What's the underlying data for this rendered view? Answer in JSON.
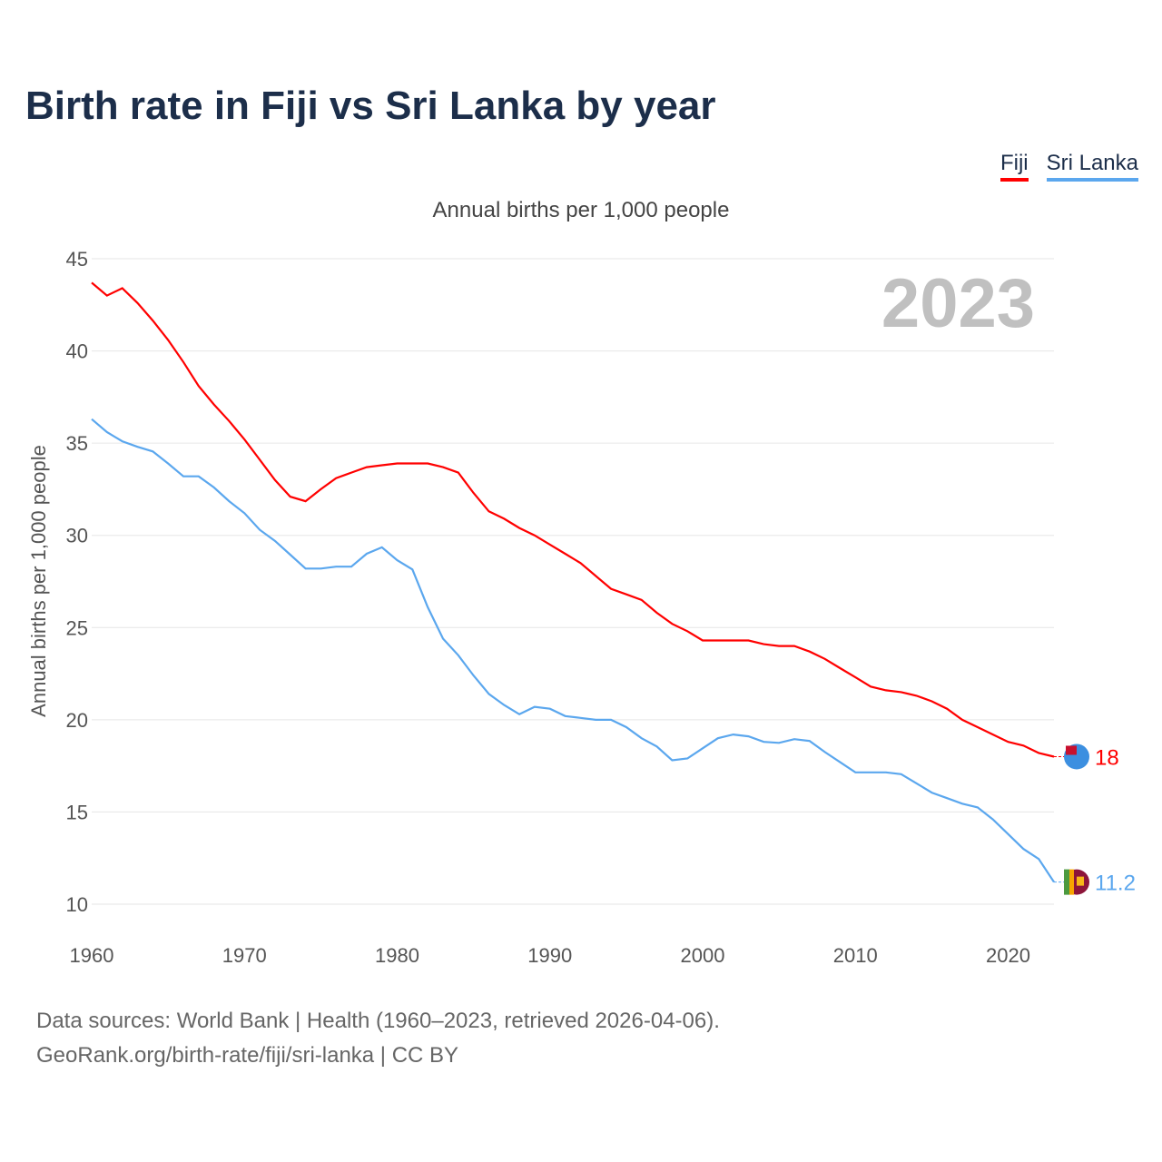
{
  "title": "Birth rate in Fiji vs Sri Lanka by year",
  "footer": {
    "line1": "Data sources: World Bank | Health (1960–2023, retrieved 2026-04-06).",
    "line2": "GeoRank.org/birth-rate/fiji/sri-lanka | CC BY"
  },
  "chart_data": {
    "type": "line",
    "title": "Birth rate in Fiji vs Sri Lanka by year",
    "subtitle": "Annual births per 1,000 people",
    "ylabel": "Annual births per 1,000 people",
    "xlabel": "",
    "year_label": "2023",
    "ylim": [
      10,
      45
    ],
    "xlim": [
      1960,
      2023
    ],
    "yticks": [
      10,
      15,
      20,
      25,
      30,
      35,
      40,
      45
    ],
    "xticks": [
      1960,
      1970,
      1980,
      1990,
      2000,
      2010,
      2020
    ],
    "legend": "top-right",
    "x": [
      1960,
      1961,
      1962,
      1963,
      1964,
      1965,
      1966,
      1967,
      1968,
      1969,
      1970,
      1971,
      1972,
      1973,
      1974,
      1975,
      1976,
      1977,
      1978,
      1979,
      1980,
      1981,
      1982,
      1983,
      1984,
      1985,
      1986,
      1987,
      1988,
      1989,
      1990,
      1991,
      1992,
      1993,
      1994,
      1995,
      1996,
      1997,
      1998,
      1999,
      2000,
      2001,
      2002,
      2003,
      2004,
      2005,
      2006,
      2007,
      2008,
      2009,
      2010,
      2011,
      2012,
      2013,
      2014,
      2015,
      2016,
      2017,
      2018,
      2019,
      2020,
      2021,
      2022,
      2023
    ],
    "series": [
      {
        "name": "Fiji",
        "color": "#ff0000",
        "end_label": "18",
        "values": [
          43.7,
          43.0,
          43.4,
          42.6,
          41.65,
          40.6,
          39.4,
          38.1,
          37.1,
          36.2,
          35.2,
          34.1,
          33.0,
          32.1,
          31.85,
          32.5,
          33.1,
          33.4,
          33.7,
          33.8,
          33.9,
          33.9,
          33.9,
          33.7,
          33.4,
          32.3,
          31.3,
          30.9,
          30.4,
          30.0,
          29.5,
          29.0,
          28.5,
          27.8,
          27.1,
          26.8,
          26.5,
          25.8,
          25.2,
          24.8,
          24.3,
          24.3,
          24.3,
          24.3,
          24.1,
          24.0,
          24.0,
          23.7,
          23.3,
          22.8,
          22.3,
          21.8,
          21.6,
          21.5,
          21.3,
          21.0,
          20.6,
          20.0,
          19.6,
          19.2,
          18.8,
          18.6,
          18.2,
          18.0
        ]
      },
      {
        "name": "Sri Lanka",
        "color": "#5ba7ee",
        "end_label": "11.2",
        "values": [
          36.3,
          35.6,
          35.1,
          34.8,
          34.55,
          33.9,
          33.2,
          33.2,
          32.6,
          31.85,
          31.2,
          30.3,
          29.7,
          28.95,
          28.2,
          28.2,
          28.3,
          28.3,
          29.0,
          29.35,
          28.65,
          28.15,
          26.1,
          24.4,
          23.5,
          22.4,
          21.4,
          20.8,
          20.3,
          20.7,
          20.6,
          20.2,
          20.1,
          20.0,
          20.0,
          19.6,
          19.0,
          18.55,
          17.8,
          17.9,
          18.45,
          19.0,
          19.2,
          19.1,
          18.8,
          18.75,
          18.95,
          18.85,
          18.25,
          17.7,
          17.15,
          17.15,
          17.15,
          17.05,
          16.55,
          16.05,
          15.75,
          15.45,
          15.25,
          14.6,
          13.8,
          13.0,
          12.45,
          11.2
        ]
      }
    ]
  }
}
